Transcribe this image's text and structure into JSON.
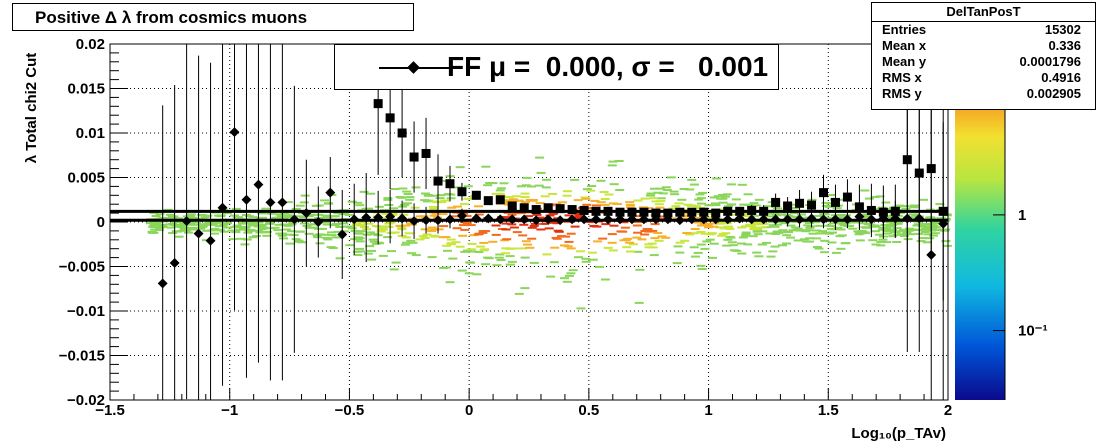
{
  "title": "Positive Δ λ from cosmics muons",
  "stats": {
    "name": "DelTanPosT",
    "rows": [
      {
        "key": "Entries",
        "value": "15302"
      },
      {
        "key": "Mean x",
        "value": "0.336"
      },
      {
        "key": "Mean y",
        "value": "0.0001796"
      },
      {
        "key": "RMS x",
        "value": "0.4916"
      },
      {
        "key": "RMS y",
        "value": "0.002905"
      }
    ]
  },
  "legend": {
    "text": "FF μ =  0.000, σ =   0.001"
  },
  "colorbar": {
    "ticks": [
      {
        "value": 1,
        "label": "1"
      },
      {
        "value": 0.1,
        "label": "10⁻¹"
      }
    ]
  },
  "chart_data": {
    "type": "scatter",
    "xlabel": "Log₁₀(p_TAv)",
    "ylabel": "λ  Total chi2 Cut",
    "xlim": [
      -1.5,
      2
    ],
    "ylim": [
      -0.02,
      0.02
    ],
    "grid": true,
    "log_color_scale": true,
    "x_ticks": [
      {
        "v": -1.5,
        "label": "−1.5"
      },
      {
        "v": -1,
        "label": "−1"
      },
      {
        "v": -0.5,
        "label": "−0.5"
      },
      {
        "v": 0,
        "label": "0"
      },
      {
        "v": 0.5,
        "label": "0.5"
      },
      {
        "v": 1,
        "label": "1"
      },
      {
        "v": 1.5,
        "label": "1.5"
      },
      {
        "v": 2,
        "label": "2"
      }
    ],
    "y_ticks": [
      {
        "v": 0.02,
        "label": "0.02"
      },
      {
        "v": 0.015,
        "label": "0.015"
      },
      {
        "v": 0.01,
        "label": "0.01"
      },
      {
        "v": 0.005,
        "label": "0.005"
      },
      {
        "v": 0,
        "label": "0"
      },
      {
        "v": -0.005,
        "label": "−0.005"
      },
      {
        "v": -0.01,
        "label": "−0.01"
      },
      {
        "v": -0.015,
        "label": "−0.015"
      },
      {
        "v": -0.02,
        "label": "−0.02"
      }
    ],
    "fit_lines": [
      0.0012,
      0.0002
    ],
    "series": [
      {
        "marker": "diamond",
        "x": [
          -1.28,
          -1.23,
          -1.18,
          -1.13,
          -1.08,
          -1.03,
          -0.98,
          -0.93,
          -0.88,
          -0.83,
          -0.78,
          -0.73,
          -0.68,
          -0.63,
          -0.58,
          -0.53,
          -0.48,
          -0.43,
          -0.38,
          -0.33,
          -0.28,
          -0.23,
          -0.18,
          -0.13,
          -0.08,
          -0.03,
          0.03,
          0.08,
          0.13,
          0.18,
          0.23,
          0.28,
          0.33,
          0.38,
          0.43,
          0.48,
          0.53,
          0.58,
          0.63,
          0.68,
          0.73,
          0.78,
          0.83,
          0.88,
          0.93,
          0.98,
          1.03,
          1.08,
          1.13,
          1.18,
          1.23,
          1.28,
          1.33,
          1.38,
          1.43,
          1.48,
          1.53,
          1.58,
          1.63,
          1.68,
          1.73,
          1.78,
          1.83,
          1.88,
          1.93,
          1.98
        ],
        "y": [
          -0.0069,
          -0.0046,
          0.0001,
          -0.0013,
          -0.0021,
          0.0016,
          0.0101,
          0.0025,
          0.0042,
          0.0022,
          0.0022,
          0.0003,
          0.001,
          0.0,
          0.0033,
          -0.0014,
          0.0003,
          0.0005,
          0.0005,
          0.0006,
          0.0004,
          0.0001,
          0.0002,
          0.0002,
          0.0003,
          0.0007,
          0.0004,
          0.0004,
          0.0003,
          0.0003,
          0.0003,
          0.0002,
          0.0003,
          0.0002,
          0.0003,
          0.0003,
          0.0003,
          0.0003,
          0.0003,
          0.0003,
          0.0003,
          0.0003,
          0.0003,
          0.0002,
          0.0003,
          0.0003,
          0.0003,
          0.0003,
          0.0004,
          0.0003,
          0.0003,
          0.0003,
          0.0003,
          0.0003,
          0.0004,
          0.0003,
          0.0003,
          0.0003,
          0.0006,
          0.0003,
          0.0004,
          0.0004,
          0.0004,
          0.0004,
          -0.0037,
          -0.0002
        ],
        "err": [
          0.02,
          0.02,
          0.02,
          0.02,
          0.02,
          0.02,
          0.02,
          0.02,
          0.02,
          0.02,
          0.02,
          0.015,
          0.006,
          0.004,
          0.004,
          0.005,
          0.004,
          0.005,
          0.003,
          0.003,
          0.002,
          0.002,
          0.0015,
          0.0015,
          0.001,
          0.0008,
          0.0004,
          0.0004,
          0.0003,
          0.0003,
          0.0003,
          0.0003,
          0.0003,
          0.0003,
          0.0003,
          0.0003,
          0.0003,
          0.0003,
          0.0003,
          0.0003,
          0.0003,
          0.0003,
          0.0003,
          0.0003,
          0.0003,
          0.0004,
          0.0004,
          0.0004,
          0.0004,
          0.0005,
          0.0005,
          0.0006,
          0.0008,
          0.0009,
          0.001,
          0.001,
          0.0012,
          0.001,
          0.0015,
          0.0015,
          0.0018,
          0.002,
          0.015,
          0.015,
          0.02,
          0.02
        ]
      },
      {
        "marker": "square",
        "x": [
          -0.38,
          -0.33,
          -0.28,
          -0.23,
          -0.18,
          -0.13,
          -0.08,
          -0.03,
          0.03,
          0.08,
          0.13,
          0.18,
          0.23,
          0.28,
          0.33,
          0.38,
          0.43,
          0.48,
          0.53,
          0.58,
          0.63,
          0.68,
          0.73,
          0.78,
          0.83,
          0.88,
          0.93,
          0.98,
          1.03,
          1.08,
          1.13,
          1.18,
          1.23,
          1.28,
          1.33,
          1.38,
          1.43,
          1.48,
          1.53,
          1.58,
          1.63,
          1.68,
          1.73,
          1.78,
          1.83,
          1.88,
          1.93,
          1.98
        ],
        "y": [
          0.0133,
          0.0117,
          0.01,
          0.0073,
          0.0077,
          0.0046,
          0.0043,
          0.0034,
          0.003,
          0.0024,
          0.0025,
          0.0018,
          0.0016,
          0.0014,
          0.0016,
          0.0015,
          0.0014,
          0.0013,
          0.0012,
          0.0012,
          0.0011,
          0.0011,
          0.0011,
          0.001,
          0.001,
          0.0011,
          0.0011,
          0.0011,
          0.001,
          0.0012,
          0.0012,
          0.0013,
          0.0012,
          0.0022,
          0.0018,
          0.0021,
          0.0019,
          0.0033,
          0.0022,
          0.0028,
          0.0017,
          0.0013,
          0.0011,
          0.0012,
          0.007,
          0.0055,
          0.006,
          0.0012
        ],
        "err": [
          0.008,
          0.008,
          0.005,
          0.004,
          0.004,
          0.003,
          0.002,
          0.001,
          0.0005,
          0.0004,
          0.0004,
          0.0003,
          0.0003,
          0.0003,
          0.0003,
          0.0003,
          0.0003,
          0.0003,
          0.0003,
          0.0003,
          0.0003,
          0.0003,
          0.0003,
          0.0003,
          0.0003,
          0.0004,
          0.0004,
          0.0004,
          0.0004,
          0.0005,
          0.0005,
          0.0006,
          0.0007,
          0.001,
          0.001,
          0.0015,
          0.0015,
          0.002,
          0.002,
          0.002,
          0.0025,
          0.003,
          0.003,
          0.003,
          0.012,
          0.01,
          0.01,
          0.01
        ]
      }
    ]
  }
}
